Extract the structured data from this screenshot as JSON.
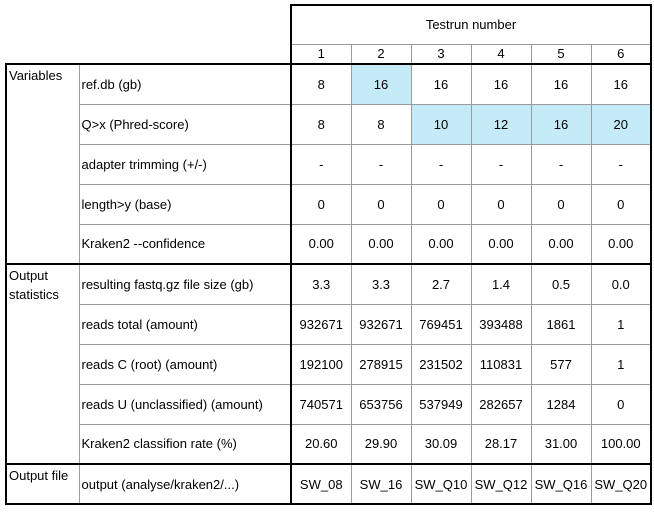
{
  "header": {
    "title": "Testrun number",
    "runs": [
      "1",
      "2",
      "3",
      "4",
      "5",
      "6"
    ]
  },
  "colors": {
    "highlight": "#c6ebf8",
    "border": "#9a9a9a",
    "heavy_border": "#000000"
  },
  "groups": [
    {
      "name": "Variables",
      "rows": [
        {
          "label": "ref.db (gb)",
          "values": [
            "8",
            "16",
            "16",
            "16",
            "16",
            "16"
          ],
          "highlight": [
            false,
            true,
            false,
            false,
            false,
            false
          ]
        },
        {
          "label": "Q>x (Phred-score)",
          "values": [
            "8",
            "8",
            "10",
            "12",
            "16",
            "20"
          ],
          "highlight": [
            false,
            false,
            true,
            true,
            true,
            true
          ]
        },
        {
          "label": "adapter trimming (+/-)",
          "values": [
            "-",
            "-",
            "-",
            "-",
            "-",
            "-"
          ],
          "highlight": [
            false,
            false,
            false,
            false,
            false,
            false
          ]
        },
        {
          "label": "length>y (base)",
          "values": [
            "0",
            "0",
            "0",
            "0",
            "0",
            "0"
          ],
          "highlight": [
            false,
            false,
            false,
            false,
            false,
            false
          ]
        },
        {
          "label": "Kraken2 --confidence",
          "values": [
            "0.00",
            "0.00",
            "0.00",
            "0.00",
            "0.00",
            "0.00"
          ],
          "highlight": [
            false,
            false,
            false,
            false,
            false,
            false
          ]
        }
      ]
    },
    {
      "name": "Output statistics",
      "rows": [
        {
          "label": "resulting fastq.gz file size (gb)",
          "values": [
            "3.3",
            "3.3",
            "2.7",
            "1.4",
            "0.5",
            "0.0"
          ],
          "highlight": [
            false,
            false,
            false,
            false,
            false,
            false
          ]
        },
        {
          "label": "reads total (amount)",
          "values": [
            "932671",
            "932671",
            "769451",
            "393488",
            "1861",
            "1"
          ],
          "highlight": [
            false,
            false,
            false,
            false,
            false,
            false
          ]
        },
        {
          "label": "reads C (root) (amount)",
          "values": [
            "192100",
            "278915",
            "231502",
            "110831",
            "577",
            "1"
          ],
          "highlight": [
            false,
            false,
            false,
            false,
            false,
            false
          ]
        },
        {
          "label": "reads U (unclassified) (amount)",
          "values": [
            "740571",
            "653756",
            "537949",
            "282657",
            "1284",
            "0"
          ],
          "highlight": [
            false,
            false,
            false,
            false,
            false,
            false
          ]
        },
        {
          "label": "Kraken2 classifion rate (%)",
          "values": [
            "20.60",
            "29.90",
            "30.09",
            "28.17",
            "31.00",
            "100.00"
          ],
          "highlight": [
            false,
            false,
            false,
            false,
            false,
            false
          ]
        }
      ]
    },
    {
      "name": "Output file",
      "rows": [
        {
          "label": "output (analyse/kraken2/...)",
          "values": [
            "SW_08",
            "SW_16",
            "SW_Q10",
            "SW_Q12",
            "SW_Q16",
            "SW_Q20"
          ],
          "highlight": [
            false,
            false,
            false,
            false,
            false,
            false
          ]
        }
      ]
    }
  ]
}
